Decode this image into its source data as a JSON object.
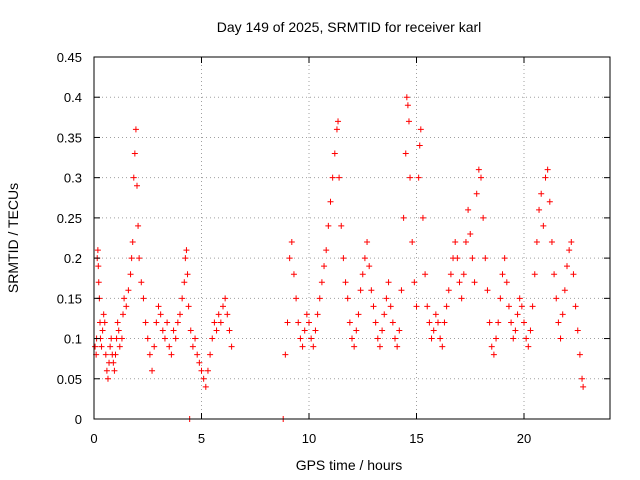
{
  "chart_data": {
    "type": "scatter",
    "title": "Day 149 of 2025, SRMTID for receiver karl",
    "xlabel": "GPS time / hours",
    "ylabel": "SRMTID / TECUs",
    "xlim": [
      0,
      24
    ],
    "ylim": [
      0,
      0.45
    ],
    "x_ticks": [
      0,
      5,
      10,
      15,
      20
    ],
    "x_tick_labels": [
      "0",
      "5",
      "10",
      "15",
      "20"
    ],
    "y_ticks": [
      0,
      0.05,
      0.1,
      0.15,
      0.2,
      0.25,
      0.3,
      0.35,
      0.4,
      0.45
    ],
    "y_tick_labels": [
      "0",
      "0.05",
      "0.1",
      "0.15",
      "0.2",
      "0.25",
      "0.3",
      "0.35",
      "0.4",
      "0.45"
    ],
    "grid": true,
    "marker": "plus",
    "color": "#ff0000",
    "series": [
      {
        "name": "SRMTID",
        "points": [
          [
            0.05,
            0.09
          ],
          [
            0.1,
            0.08
          ],
          [
            0.12,
            0.1
          ],
          [
            0.15,
            0.2
          ],
          [
            0.18,
            0.21
          ],
          [
            0.2,
            0.19
          ],
          [
            0.22,
            0.17
          ],
          [
            0.25,
            0.15
          ],
          [
            0.28,
            0.12
          ],
          [
            0.3,
            0.1
          ],
          [
            0.35,
            0.09
          ],
          [
            0.4,
            0.11
          ],
          [
            0.45,
            0.13
          ],
          [
            0.5,
            0.12
          ],
          [
            0.55,
            0.08
          ],
          [
            0.6,
            0.06
          ],
          [
            0.65,
            0.05
          ],
          [
            0.7,
            0.07
          ],
          [
            0.75,
            0.09
          ],
          [
            0.8,
            0.1
          ],
          [
            0.85,
            0.08
          ],
          [
            0.9,
            0.07
          ],
          [
            0.95,
            0.06
          ],
          [
            1.0,
            0.08
          ],
          [
            1.05,
            0.1
          ],
          [
            1.1,
            0.12
          ],
          [
            1.15,
            0.11
          ],
          [
            1.2,
            0.09
          ],
          [
            1.3,
            0.1
          ],
          [
            1.35,
            0.13
          ],
          [
            1.4,
            0.15
          ],
          [
            1.5,
            0.14
          ],
          [
            1.6,
            0.16
          ],
          [
            1.7,
            0.18
          ],
          [
            1.75,
            0.2
          ],
          [
            1.8,
            0.22
          ],
          [
            1.85,
            0.3
          ],
          [
            1.9,
            0.33
          ],
          [
            1.95,
            0.36
          ],
          [
            2.0,
            0.29
          ],
          [
            2.05,
            0.24
          ],
          [
            2.1,
            0.2
          ],
          [
            2.2,
            0.17
          ],
          [
            2.3,
            0.15
          ],
          [
            2.4,
            0.12
          ],
          [
            2.5,
            0.1
          ],
          [
            2.6,
            0.08
          ],
          [
            2.7,
            0.06
          ],
          [
            2.8,
            0.09
          ],
          [
            2.9,
            0.12
          ],
          [
            3.0,
            0.14
          ],
          [
            3.1,
            0.13
          ],
          [
            3.2,
            0.11
          ],
          [
            3.3,
            0.1
          ],
          [
            3.4,
            0.12
          ],
          [
            3.5,
            0.09
          ],
          [
            3.6,
            0.08
          ],
          [
            3.7,
            0.11
          ],
          [
            3.8,
            0.1
          ],
          [
            3.9,
            0.12
          ],
          [
            4.0,
            0.13
          ],
          [
            4.1,
            0.15
          ],
          [
            4.2,
            0.17
          ],
          [
            4.25,
            0.2
          ],
          [
            4.3,
            0.21
          ],
          [
            4.35,
            0.18
          ],
          [
            4.4,
            0.14
          ],
          [
            4.5,
            0.11
          ],
          [
            4.6,
            0.09
          ],
          [
            4.7,
            0.1
          ],
          [
            4.8,
            0.08
          ],
          [
            4.9,
            0.07
          ],
          [
            5.0,
            0.06
          ],
          [
            5.1,
            0.05
          ],
          [
            5.2,
            0.04
          ],
          [
            5.3,
            0.06
          ],
          [
            5.4,
            0.08
          ],
          [
            5.5,
            0.1
          ],
          [
            5.6,
            0.12
          ],
          [
            5.7,
            0.11
          ],
          [
            5.8,
            0.13
          ],
          [
            5.9,
            0.12
          ],
          [
            6.0,
            0.14
          ],
          [
            6.1,
            0.15
          ],
          [
            6.2,
            0.13
          ],
          [
            6.3,
            0.11
          ],
          [
            6.4,
            0.09
          ],
          [
            4.45,
            0.0
          ],
          [
            8.8,
            0.0
          ],
          [
            8.9,
            0.08
          ],
          [
            9.0,
            0.12
          ],
          [
            9.1,
            0.2
          ],
          [
            9.2,
            0.22
          ],
          [
            9.3,
            0.18
          ],
          [
            9.4,
            0.15
          ],
          [
            9.5,
            0.12
          ],
          [
            9.6,
            0.1
          ],
          [
            9.7,
            0.09
          ],
          [
            9.8,
            0.11
          ],
          [
            9.9,
            0.13
          ],
          [
            10.0,
            0.12
          ],
          [
            10.1,
            0.1
          ],
          [
            10.2,
            0.09
          ],
          [
            10.3,
            0.11
          ],
          [
            10.4,
            0.13
          ],
          [
            10.5,
            0.15
          ],
          [
            10.6,
            0.17
          ],
          [
            10.7,
            0.19
          ],
          [
            10.8,
            0.21
          ],
          [
            10.9,
            0.24
          ],
          [
            11.0,
            0.27
          ],
          [
            11.1,
            0.3
          ],
          [
            11.2,
            0.33
          ],
          [
            11.3,
            0.36
          ],
          [
            11.35,
            0.37
          ],
          [
            11.4,
            0.3
          ],
          [
            11.5,
            0.24
          ],
          [
            11.6,
            0.2
          ],
          [
            11.7,
            0.17
          ],
          [
            11.8,
            0.15
          ],
          [
            11.9,
            0.12
          ],
          [
            12.0,
            0.1
          ],
          [
            12.1,
            0.09
          ],
          [
            12.2,
            0.11
          ],
          [
            12.3,
            0.13
          ],
          [
            12.4,
            0.16
          ],
          [
            12.5,
            0.18
          ],
          [
            12.6,
            0.2
          ],
          [
            12.7,
            0.22
          ],
          [
            12.8,
            0.19
          ],
          [
            12.9,
            0.16
          ],
          [
            13.0,
            0.14
          ],
          [
            13.1,
            0.12
          ],
          [
            13.2,
            0.1
          ],
          [
            13.3,
            0.09
          ],
          [
            13.4,
            0.11
          ],
          [
            13.5,
            0.13
          ],
          [
            13.6,
            0.15
          ],
          [
            13.7,
            0.17
          ],
          [
            13.8,
            0.14
          ],
          [
            13.9,
            0.12
          ],
          [
            14.0,
            0.1
          ],
          [
            14.1,
            0.09
          ],
          [
            14.2,
            0.11
          ],
          [
            14.3,
            0.16
          ],
          [
            14.4,
            0.25
          ],
          [
            14.5,
            0.33
          ],
          [
            14.55,
            0.4
          ],
          [
            14.6,
            0.39
          ],
          [
            14.65,
            0.37
          ],
          [
            14.7,
            0.3
          ],
          [
            14.8,
            0.22
          ],
          [
            14.9,
            0.17
          ],
          [
            15.0,
            0.14
          ],
          [
            15.1,
            0.3
          ],
          [
            15.15,
            0.34
          ],
          [
            15.2,
            0.36
          ],
          [
            15.3,
            0.25
          ],
          [
            15.4,
            0.18
          ],
          [
            15.5,
            0.14
          ],
          [
            15.6,
            0.12
          ],
          [
            15.7,
            0.1
          ],
          [
            15.8,
            0.11
          ],
          [
            15.9,
            0.13
          ],
          [
            16.0,
            0.12
          ],
          [
            16.1,
            0.1
          ],
          [
            16.2,
            0.09
          ],
          [
            16.3,
            0.12
          ],
          [
            16.4,
            0.14
          ],
          [
            16.5,
            0.16
          ],
          [
            16.6,
            0.18
          ],
          [
            16.7,
            0.2
          ],
          [
            16.8,
            0.22
          ],
          [
            16.9,
            0.2
          ],
          [
            17.0,
            0.17
          ],
          [
            17.1,
            0.15
          ],
          [
            17.2,
            0.18
          ],
          [
            17.3,
            0.22
          ],
          [
            17.4,
            0.26
          ],
          [
            17.5,
            0.23
          ],
          [
            17.6,
            0.2
          ],
          [
            17.7,
            0.17
          ],
          [
            17.8,
            0.28
          ],
          [
            17.9,
            0.31
          ],
          [
            18.0,
            0.3
          ],
          [
            18.1,
            0.25
          ],
          [
            18.2,
            0.2
          ],
          [
            18.3,
            0.16
          ],
          [
            18.4,
            0.12
          ],
          [
            18.5,
            0.09
          ],
          [
            18.6,
            0.08
          ],
          [
            18.7,
            0.1
          ],
          [
            18.8,
            0.12
          ],
          [
            18.9,
            0.15
          ],
          [
            19.0,
            0.18
          ],
          [
            19.1,
            0.2
          ],
          [
            19.2,
            0.17
          ],
          [
            19.3,
            0.14
          ],
          [
            19.4,
            0.12
          ],
          [
            19.5,
            0.1
          ],
          [
            19.6,
            0.11
          ],
          [
            19.7,
            0.13
          ],
          [
            19.8,
            0.15
          ],
          [
            19.9,
            0.14
          ],
          [
            20.0,
            0.12
          ],
          [
            20.1,
            0.1
          ],
          [
            20.2,
            0.09
          ],
          [
            20.3,
            0.11
          ],
          [
            20.4,
            0.14
          ],
          [
            20.5,
            0.18
          ],
          [
            20.6,
            0.22
          ],
          [
            20.7,
            0.26
          ],
          [
            20.8,
            0.28
          ],
          [
            20.9,
            0.24
          ],
          [
            21.0,
            0.3
          ],
          [
            21.1,
            0.31
          ],
          [
            21.2,
            0.27
          ],
          [
            21.3,
            0.22
          ],
          [
            21.4,
            0.18
          ],
          [
            21.5,
            0.15
          ],
          [
            21.6,
            0.12
          ],
          [
            21.7,
            0.1
          ],
          [
            21.8,
            0.13
          ],
          [
            21.9,
            0.16
          ],
          [
            22.0,
            0.19
          ],
          [
            22.1,
            0.21
          ],
          [
            22.2,
            0.22
          ],
          [
            22.3,
            0.18
          ],
          [
            22.4,
            0.14
          ],
          [
            22.5,
            0.11
          ],
          [
            22.6,
            0.08
          ],
          [
            22.7,
            0.05
          ],
          [
            22.75,
            0.04
          ]
        ]
      }
    ]
  }
}
